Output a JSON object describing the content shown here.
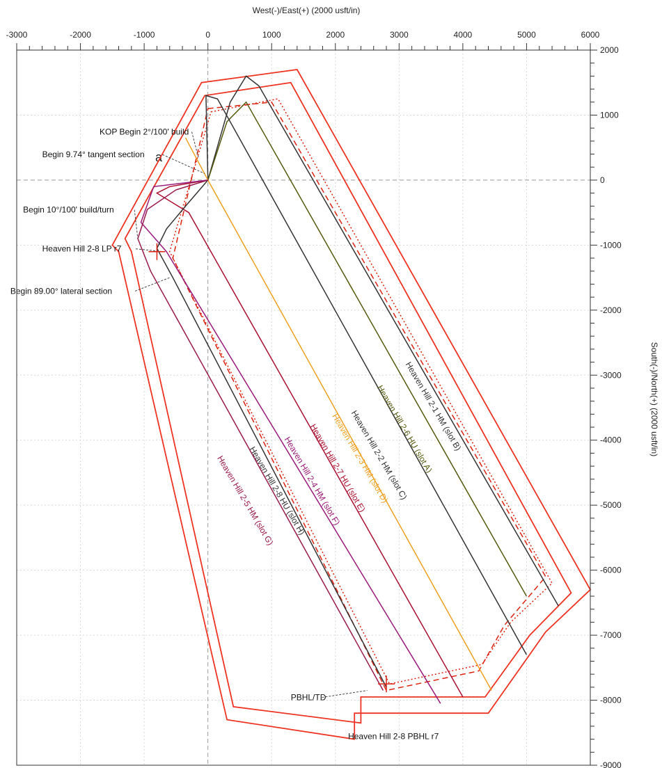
{
  "chart_data": {
    "type": "line",
    "title": "",
    "xlabel": "West(-)/East(+) (2000 usft/in)",
    "ylabel": "South(-)/North(+) (2000 usft/in)",
    "xlim": [
      -3000,
      6000
    ],
    "ylim": [
      -9000,
      2000
    ],
    "x_ticks": [
      -3000,
      -2000,
      -1000,
      0,
      1000,
      2000,
      3000,
      4000,
      5000,
      6000
    ],
    "y_ticks": [
      2000,
      1000,
      0,
      -1000,
      -2000,
      -3000,
      -4000,
      -5000,
      -6000,
      -7000,
      -8000,
      -9000
    ],
    "x_tick_labels": [
      "-3000",
      "-2000",
      "-1000",
      "0",
      "1000",
      "2000",
      "3000",
      "4000",
      "5000",
      "6000"
    ],
    "y_tick_labels": [
      "2000",
      "1000",
      "0",
      "-1000",
      "-2000",
      "-3000",
      "-4000",
      "-5000",
      "-6000",
      "-7000",
      "-8000",
      "-9000"
    ],
    "grid": true,
    "legend": "none",
    "series": [
      {
        "name": "Heaven Hill 2-1 HM (slot B)",
        "color": "#333333",
        "dash": "solid",
        "points": [
          [
            0,
            0
          ],
          [
            350,
            1200
          ],
          [
            600,
            1600
          ],
          [
            800,
            1450
          ],
          [
            5500,
            -6550
          ]
        ],
        "label_at": [
          3500,
          -3500
        ],
        "label_angle": 59.6
      },
      {
        "name": "Heaven Hill 2-6 HU (slot A)",
        "color": "#555a10",
        "dash": "solid",
        "points": [
          [
            0,
            0
          ],
          [
            300,
            900
          ],
          [
            600,
            1200
          ],
          [
            5000,
            -6400
          ]
        ],
        "label_at": [
          3050,
          -3850
        ],
        "label_angle": 59.6
      },
      {
        "name": "Heaven Hill 2-2 HM (slot C)",
        "color": "#333333",
        "dash": "solid",
        "points": [
          [
            0,
            0
          ],
          [
            -30,
            1300
          ],
          [
            150,
            1250
          ],
          [
            5000,
            -7300
          ]
        ],
        "label_at": [
          2650,
          -4250
        ],
        "label_angle": 59.6
      },
      {
        "name": "Heaven Hill 2-3 HM (slot D)",
        "color": "#f0a020",
        "dash": "solid",
        "points": [
          [
            -350,
            650
          ],
          [
            0,
            0
          ],
          [
            4450,
            -7850
          ]
        ],
        "label_at": [
          2350,
          -4300
        ],
        "label_angle": 59.6
      },
      {
        "name": "Heaven Hill 2-7 HU (slot E)",
        "color": "#aa1030",
        "dash": "solid",
        "points": [
          [
            0,
            0
          ],
          [
            -600,
            -100
          ],
          [
            -800,
            -200
          ],
          [
            -300,
            -500
          ],
          [
            4000,
            -7950
          ]
        ],
        "label_at": [
          2000,
          -4450
        ],
        "label_angle": 59.6
      },
      {
        "name": "Heaven Hill 2-4 HM (slot F)",
        "color": "#991a7a",
        "dash": "solid",
        "points": [
          [
            0,
            0
          ],
          [
            -850,
            -100
          ],
          [
            -1050,
            -650
          ],
          [
            -650,
            -1100
          ],
          [
            3650,
            -8050
          ]
        ],
        "label_at": [
          1600,
          -4650
        ],
        "label_angle": 59.6
      },
      {
        "name": "Heaven Hill 2-8 HU (slot H)",
        "color": "#333333",
        "dash": "solid",
        "points": [
          [
            0,
            0
          ],
          [
            -350,
            -400
          ],
          [
            -650,
            -750
          ],
          [
            -800,
            -1050
          ],
          [
            -550,
            -1500
          ],
          [
            2800,
            -7800
          ]
        ],
        "label_at": [
          1050,
          -4800
        ],
        "label_angle": 59.6
      },
      {
        "name": "Heaven Hill 2-5 HM (slot G)",
        "color": "#991a4a",
        "dash": "solid",
        "points": [
          [
            0,
            0
          ],
          [
            -500,
            -150
          ],
          [
            -950,
            -450
          ],
          [
            -1100,
            -900
          ],
          [
            -900,
            -1400
          ],
          [
            2750,
            -7850
          ]
        ],
        "label_at": [
          550,
          -4950
        ],
        "label_angle": 59.6
      }
    ],
    "outlines": [
      {
        "name": "outer-boundary",
        "color": "#ee3322",
        "points": [
          [
            -1500,
            -1000
          ],
          [
            -100,
            1500
          ],
          [
            1400,
            1700
          ],
          [
            6000,
            -6300
          ],
          [
            5300,
            -6950
          ],
          [
            4400,
            -8200
          ],
          [
            2300,
            -8200
          ],
          [
            2300,
            -8600
          ],
          [
            300,
            -8300
          ],
          [
            -1400,
            -1100
          ]
        ]
      },
      {
        "name": "inner-boundary",
        "color": "#ee3322",
        "points": [
          [
            -1300,
            -900
          ],
          [
            -50,
            1300
          ],
          [
            1300,
            1500
          ],
          [
            5700,
            -6350
          ],
          [
            5050,
            -7000
          ],
          [
            4350,
            -7950
          ],
          [
            2400,
            -7950
          ],
          [
            2400,
            -8350
          ],
          [
            400,
            -8100
          ],
          [
            -1200,
            -1100
          ]
        ]
      },
      {
        "name": "setback-dashed",
        "color": "#dd2211",
        "dash": "8 5",
        "points": [
          [
            0,
            1100
          ],
          [
            1000,
            1200
          ],
          [
            5300,
            -6100
          ],
          [
            4650,
            -6850
          ],
          [
            4250,
            -7550
          ],
          [
            2800,
            -7850
          ],
          [
            -550,
            -1200
          ]
        ]
      },
      {
        "name": "setback-dotted",
        "color": "#dd2211",
        "dash": "2 3",
        "points": [
          [
            50,
            1050
          ],
          [
            1100,
            1250
          ],
          [
            5400,
            -6200
          ],
          [
            4750,
            -6800
          ],
          [
            4300,
            -7450
          ],
          [
            2850,
            -7750
          ],
          [
            -600,
            -1100
          ]
        ]
      }
    ],
    "annotations": [
      {
        "text": "KOP Begin 2°/100' build",
        "at": [
          -1700,
          700
        ],
        "target": [
          -150,
          350
        ]
      },
      {
        "text": "Begin 9.74° tangent section",
        "at": [
          -2600,
          350
        ],
        "target": [
          -50,
          100
        ]
      },
      {
        "text": "Begin 10°/100' build/turn",
        "at": [
          -2900,
          -500
        ],
        "target": [
          -1100,
          -900
        ]
      },
      {
        "text": "Heaven Hill 2-8 LP r7",
        "at": [
          -2600,
          -1100
        ],
        "target": [
          -700,
          -1100
        ]
      },
      {
        "text": "Begin 89.00° lateral section",
        "at": [
          -3100,
          -1750
        ],
        "target": [
          -600,
          -1500
        ]
      },
      {
        "text": "PBHL/TD",
        "at": [
          1300,
          -8000
        ],
        "target": [
          2500,
          -7850
        ]
      },
      {
        "text": "Heaven Hill 2-8 PBHL r7",
        "at": [
          2200,
          -8600
        ],
        "target": null
      }
    ],
    "markers": [
      {
        "at": [
          -800,
          -1100
        ],
        "color": "#dd2211"
      },
      {
        "at": [
          2800,
          -7750
        ],
        "color": "#dd2211"
      }
    ]
  },
  "stray_text": "a"
}
